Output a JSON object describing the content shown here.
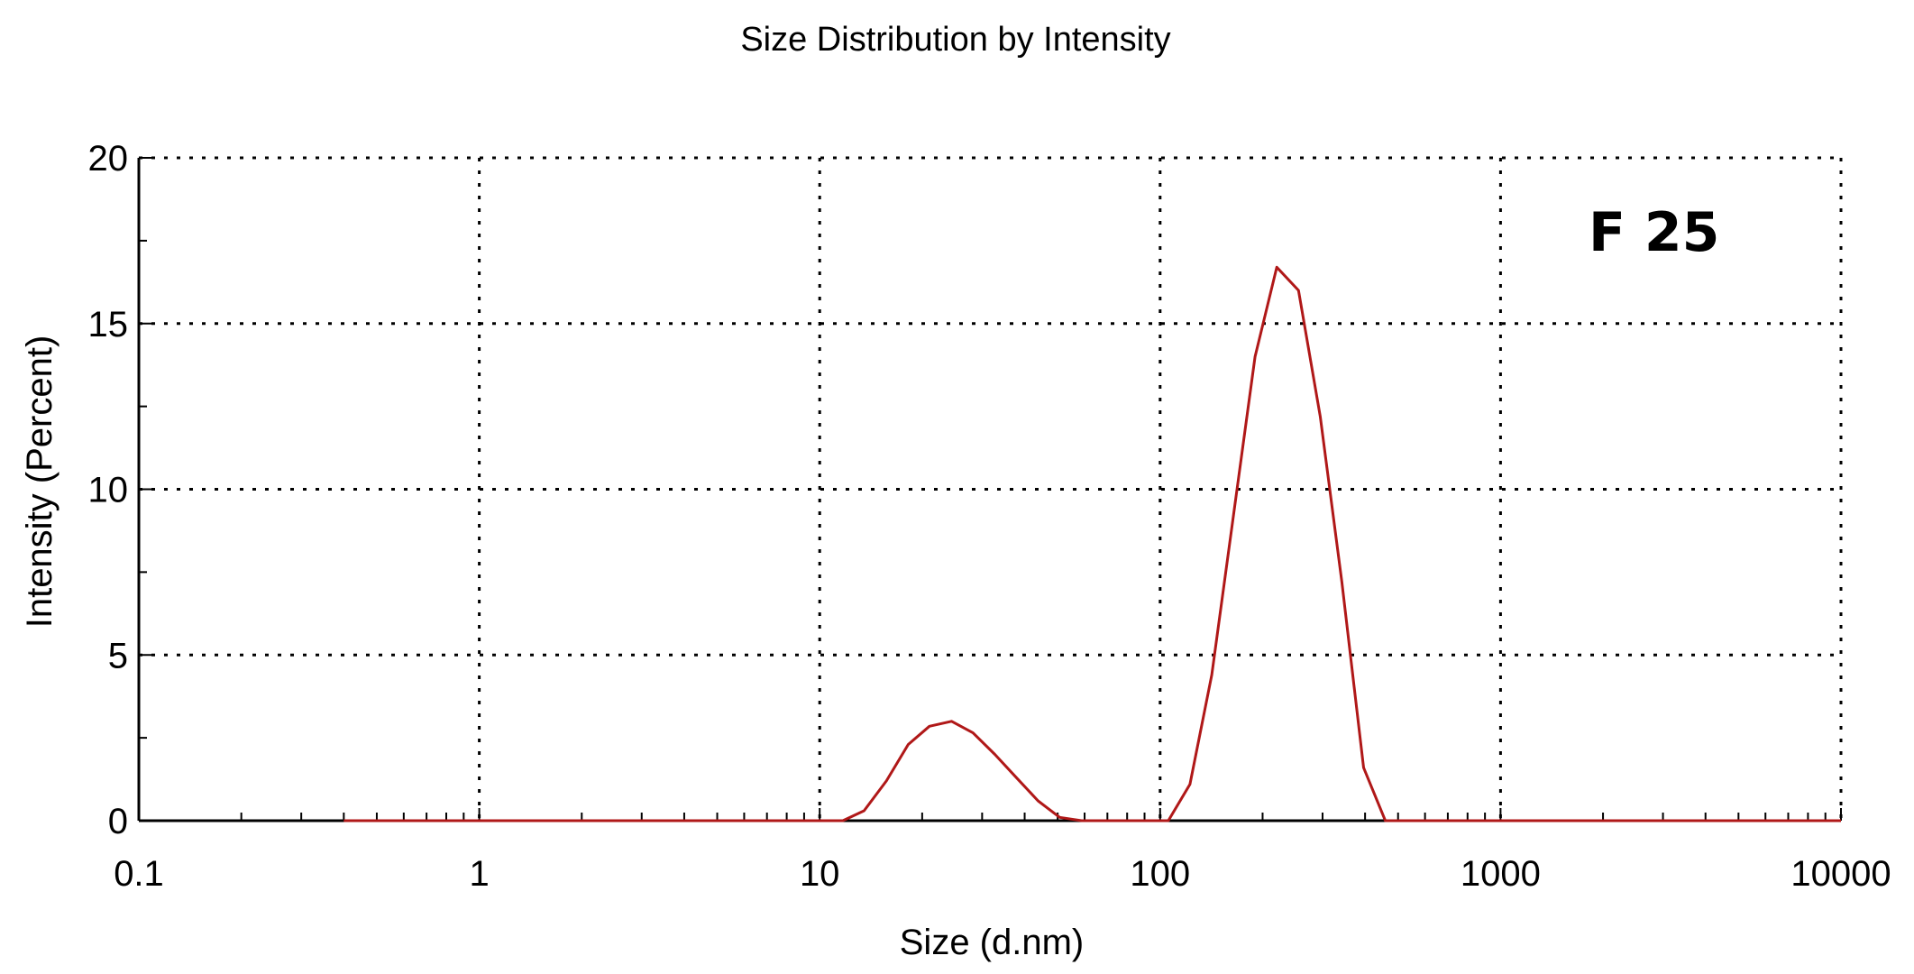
{
  "chart_data": {
    "type": "line",
    "title": "Size Distribution by Intensity",
    "xlabel": "Size (d.nm)",
    "ylabel": "Intensity (Percent)",
    "xscale": "log",
    "xlim": [
      0.1,
      10000
    ],
    "ylim": [
      0,
      20
    ],
    "xticks": [
      0.1,
      1,
      10,
      100,
      1000,
      10000
    ],
    "xtick_labels": [
      "0.1",
      "1",
      "10",
      "100",
      "1000",
      "10000"
    ],
    "yticks": [
      0,
      5,
      10,
      15,
      20
    ],
    "ytick_labels": [
      "0",
      "5",
      "10",
      "15",
      "20"
    ],
    "grid": true,
    "annotation": "F 25",
    "line_color": "#b01818",
    "series": [
      {
        "x": [
          0.4,
          0.6,
          1,
          2,
          4,
          7,
          9,
          11.7,
          13.5,
          15.7,
          18.2,
          21.0,
          24.4,
          28.2,
          32.7,
          37.8,
          43.8,
          50.7,
          58.8,
          68.1,
          78.8,
          91.3,
          105.7,
          122.4,
          141.8,
          164.2,
          190.1,
          220.2,
          255.0,
          295.3,
          342.0,
          396.1,
          458.7,
          531.2,
          615.1,
          1000,
          2000,
          5000,
          10000
        ],
        "y": [
          0,
          0,
          0,
          0,
          0,
          0,
          0,
          0,
          0.3,
          1.2,
          2.3,
          2.85,
          3.0,
          2.65,
          2.0,
          1.3,
          0.6,
          0.1,
          0,
          0,
          0,
          0,
          0,
          1.1,
          4.4,
          9.2,
          14.0,
          16.7,
          16.0,
          12.2,
          7.2,
          1.6,
          0,
          0,
          0,
          0,
          0,
          0,
          0
        ]
      }
    ]
  }
}
